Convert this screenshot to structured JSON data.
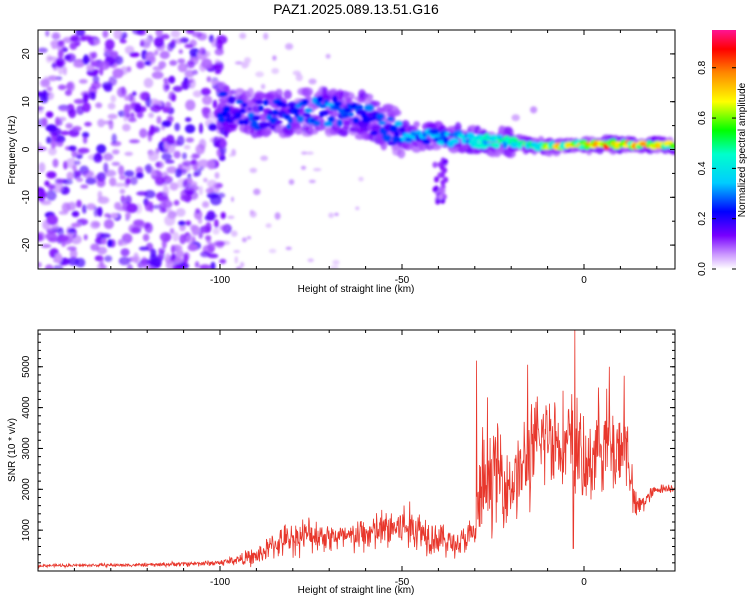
{
  "title": "PAZ1.2025.089.13.51.G16",
  "chart_data": [
    {
      "type": "heatmap",
      "xlabel": "Height of straight line (km)",
      "ylabel": "Frequency (Hz)",
      "xlim": [
        -150,
        25
      ],
      "ylim": [
        -25,
        25
      ],
      "xticks": [
        -100,
        -50,
        0
      ],
      "xtick_labels": [
        "-100",
        "-50",
        "0"
      ],
      "yticks": [
        -20,
        -10,
        0,
        10,
        20
      ],
      "ytick_labels": [
        "-20",
        "-10",
        "0",
        "10",
        "20"
      ],
      "colorbar": {
        "label": "Normalized spectral amplitude",
        "range": [
          0,
          0.95
        ],
        "ticks": [
          0.0,
          0.2,
          0.4,
          0.6,
          0.8
        ],
        "tick_labels": [
          "0.0",
          "0.2",
          "0.4",
          "0.6",
          "0.8"
        ],
        "colormap": [
          "#ffffff",
          "#7700ff",
          "#0000ff",
          "#00ffff",
          "#00ff00",
          "#ffff00",
          "#ff8800",
          "#ff0000",
          "#ff1493"
        ]
      },
      "ridge": {
        "x": [
          -100,
          -90,
          -80,
          -70,
          -60,
          -55,
          -50,
          -40,
          -30,
          -20,
          -10,
          0,
          10,
          20,
          25
        ],
        "y": [
          9,
          7,
          7.5,
          8,
          7,
          5,
          3,
          2.5,
          2,
          1.5,
          0.5,
          1,
          1,
          1,
          1
        ],
        "amplitude": [
          0.25,
          0.3,
          0.3,
          0.35,
          0.3,
          0.3,
          0.35,
          0.4,
          0.45,
          0.55,
          0.7,
          0.85,
          0.9,
          0.8,
          0.7
        ]
      },
      "noise_region": {
        "x_range": [
          -150,
          -98
        ],
        "freq_range": [
          -25,
          25
        ]
      },
      "colors": {
        "noise": "#7b3fe4",
        "ridge_low": "#3300ff"
      }
    },
    {
      "type": "line",
      "xlabel": "Height of straight line (km)",
      "ylabel": "SNR (10 * v/v)",
      "xlim": [
        -150,
        25
      ],
      "ylim": [
        0,
        5900
      ],
      "xticks": [
        -100,
        -50,
        0
      ],
      "xtick_labels": [
        "-100",
        "-50",
        "0"
      ],
      "yticks": [
        1000,
        2000,
        3000,
        4000,
        5000
      ],
      "ytick_labels": [
        "1000",
        "2000",
        "3000",
        "4000",
        "5000"
      ],
      "color": "#e8372c",
      "series": [
        {
          "x": [
            -150,
            -120,
            -100,
            -95,
            -90,
            -85,
            -80,
            -75,
            -70,
            -65,
            -60,
            -55,
            -50,
            -45,
            -40,
            -35,
            -30,
            -28,
            -27,
            -25,
            -20,
            -15,
            -10,
            -5,
            -2,
            0,
            3,
            5,
            8,
            10,
            12,
            14,
            20,
            25
          ],
          "y": [
            130,
            150,
            200,
            280,
            350,
            650,
            800,
            900,
            850,
            800,
            900,
            1000,
            1100,
            1000,
            800,
            650,
            900,
            2200,
            1800,
            2500,
            2100,
            2800,
            3400,
            3100,
            3200,
            2300,
            3000,
            3300,
            2900,
            3100,
            3000,
            1500,
            2000,
            2050
          ],
          "spread": [
            40,
            50,
            80,
            150,
            250,
            350,
            450,
            450,
            400,
            400,
            500,
            550,
            650,
            600,
            450,
            350,
            500,
            1500,
            1000,
            1400,
            1000,
            1300,
            1300,
            1200,
            1400,
            1200,
            1200,
            1300,
            1300,
            1200,
            1100,
            400,
            120,
            120
          ]
        }
      ],
      "spikes": [
        {
          "x": -29.5,
          "y": 5150
        },
        {
          "x": -26.5,
          "y": 4250
        },
        {
          "x": -15.5,
          "y": 5050
        },
        {
          "x": -2.5,
          "y": 5900
        },
        {
          "x": 7,
          "y": 5000
        },
        {
          "x": 11,
          "y": 4780
        }
      ]
    }
  ]
}
